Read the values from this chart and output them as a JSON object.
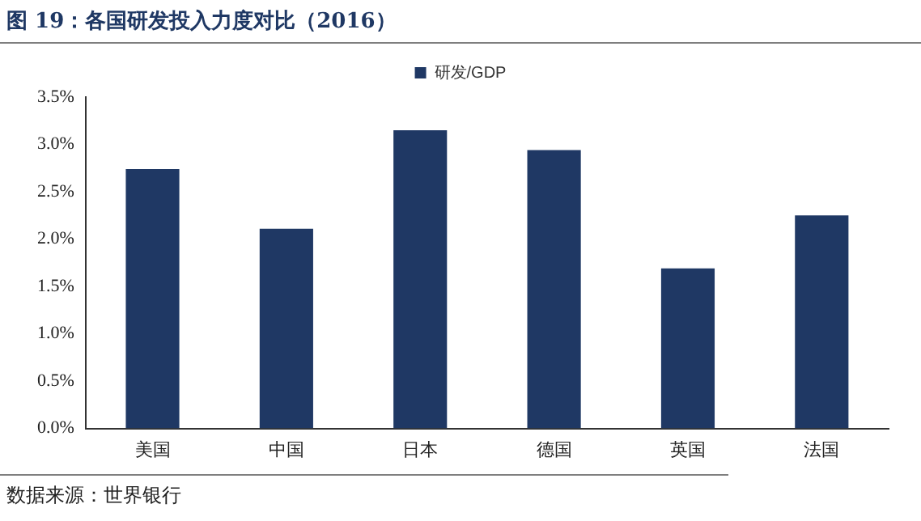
{
  "chart_data": {
    "type": "bar",
    "title": "图 19：各国研发投入力度对比（2016）",
    "categories": [
      "美国",
      "中国",
      "日本",
      "德国",
      "英国",
      "法国"
    ],
    "series": [
      {
        "name": "研发/GDP",
        "color": "#1f3864",
        "values": [
          2.74,
          2.11,
          3.15,
          2.94,
          1.69,
          2.25
        ]
      }
    ],
    "ylim": [
      0,
      3.5
    ],
    "yticks": [
      {
        "value": 0,
        "label": "0.0%"
      },
      {
        "value": 0.5,
        "label": "0.5%"
      },
      {
        "value": 1,
        "label": "1.0%"
      },
      {
        "value": 1.5,
        "label": "1.5%"
      },
      {
        "value": 2,
        "label": "2.0%"
      },
      {
        "value": 2.5,
        "label": "2.5%"
      },
      {
        "value": 3,
        "label": "3.0%"
      },
      {
        "value": 3.5,
        "label": "3.5%"
      }
    ],
    "grid": false,
    "legend": "top",
    "annotations": [
      "数据来源：世界银行"
    ]
  }
}
